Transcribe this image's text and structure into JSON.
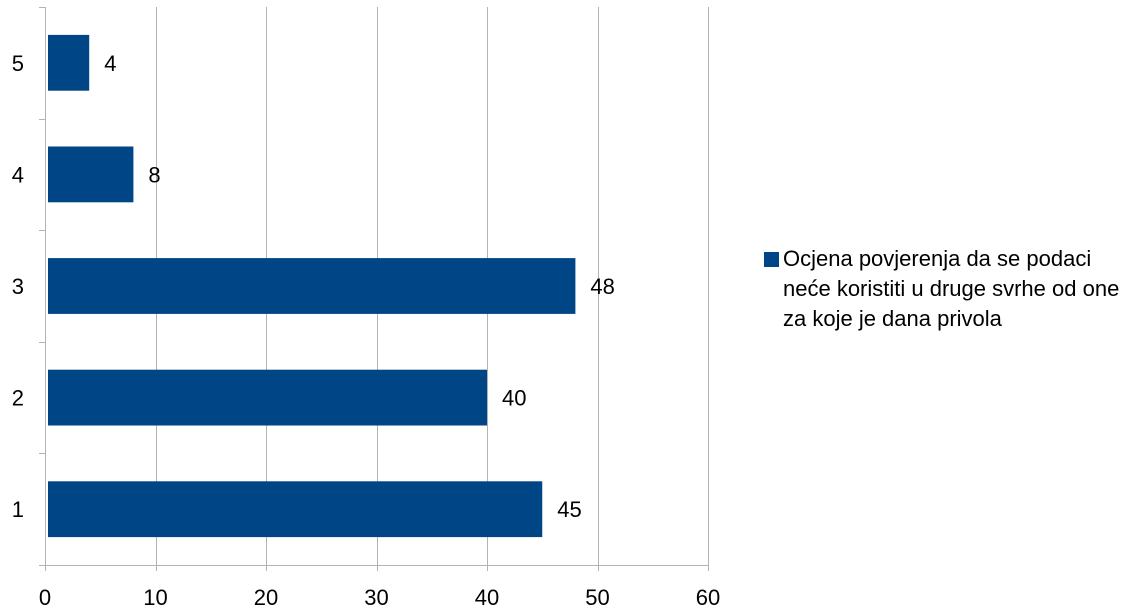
{
  "chart_data": {
    "type": "bar",
    "orientation": "horizontal",
    "categories": [
      "1",
      "2",
      "3",
      "4",
      "5"
    ],
    "series": [
      {
        "name": "Ocjena povjerenja da se podaci neće koristiti u druge svrhe od one za koje je dana privola",
        "values": [
          45,
          40,
          48,
          8,
          4
        ],
        "color": "#004586"
      }
    ],
    "data_labels": [
      "45",
      "40",
      "48",
      "8",
      "4"
    ],
    "x_ticks": [
      "0",
      "10",
      "20",
      "30",
      "40",
      "50",
      "60"
    ],
    "xlim": [
      0,
      60
    ],
    "grid": "vertical",
    "legend_position": "right",
    "title": "",
    "xlabel": "",
    "ylabel": ""
  }
}
